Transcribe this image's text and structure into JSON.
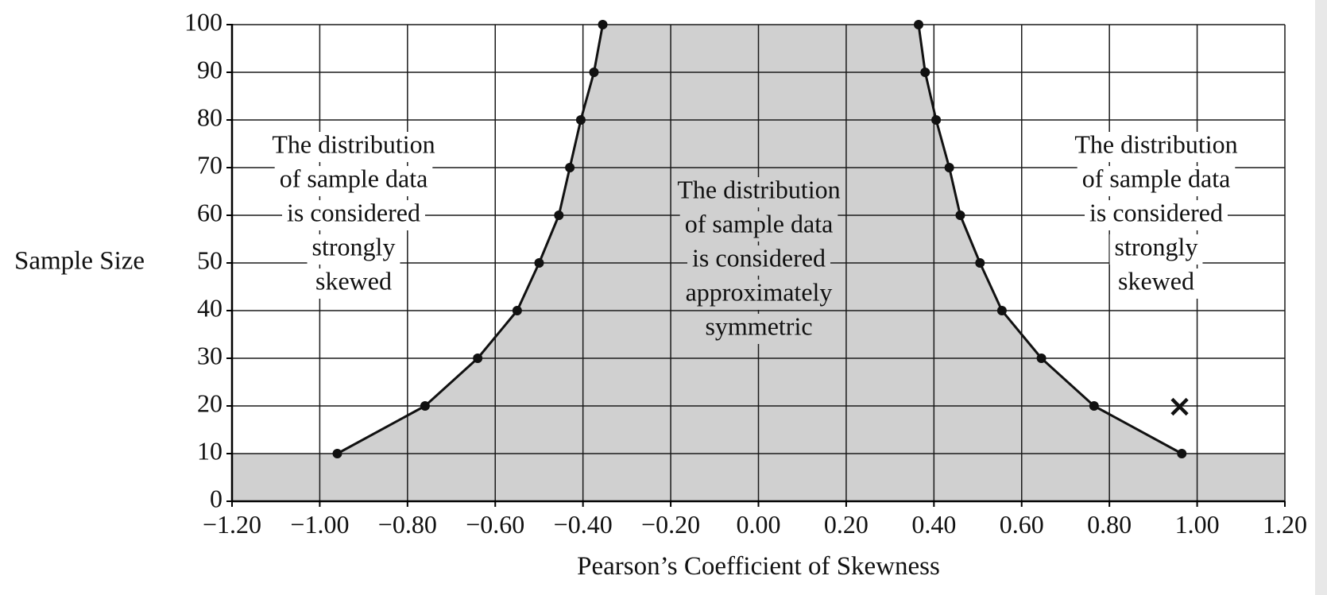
{
  "chart_data": {
    "type": "line",
    "title": "",
    "xlabel": "Pearson’s Coefficient of Skewness",
    "ylabel": "Sample Size",
    "xlim": [
      -1.2,
      1.2
    ],
    "ylim": [
      0,
      100
    ],
    "x_ticks": [
      -1.2,
      -1.0,
      -0.8,
      -0.6,
      -0.4,
      -0.2,
      0.0,
      0.2,
      0.4,
      0.6,
      0.8,
      1.0,
      1.2
    ],
    "x_tick_labels": [
      "−1.20",
      "−1.00",
      "−0.80",
      "−0.60",
      "−0.40",
      "−0.20",
      "0.00",
      "0.20",
      "0.40",
      "0.60",
      "0.80",
      "1.00",
      "1.20"
    ],
    "y_ticks": [
      0,
      10,
      20,
      30,
      40,
      50,
      60,
      70,
      80,
      90,
      100
    ],
    "y_tick_labels": [
      "0",
      "10",
      "20",
      "30",
      "40",
      "50",
      "60",
      "70",
      "80",
      "90",
      "100"
    ],
    "grid": true,
    "colors": {
      "shade": "#d0d0d0",
      "line": "#111111",
      "grid": "#1a1a1a",
      "background": "#ffffff"
    },
    "series": [
      {
        "x": [
          -0.96,
          -0.76,
          -0.64,
          -0.55,
          -0.5,
          -0.455,
          -0.43,
          -0.405,
          -0.375,
          -0.355
        ],
        "y": [
          10,
          20,
          30,
          40,
          50,
          60,
          70,
          80,
          90,
          100
        ]
      },
      {
        "x": [
          0.365,
          0.38,
          0.405,
          0.435,
          0.46,
          0.505,
          0.555,
          0.645,
          0.765,
          0.965
        ],
        "y": [
          100,
          90,
          80,
          70,
          60,
          50,
          40,
          30,
          20,
          10
        ]
      }
    ],
    "shaded_region": {
      "bottom_band_y": [
        0,
        10
      ]
    },
    "marker": {
      "symbol": "×",
      "x": 0.96,
      "y": 20
    },
    "annotations": [
      {
        "region": "left",
        "lines": [
          "The distribution",
          "of sample data",
          "is considered",
          "strongly",
          "skewed"
        ]
      },
      {
        "region": "center",
        "lines": [
          "The distribution",
          "of sample data",
          "is considered",
          "approximately",
          "symmetric"
        ]
      },
      {
        "region": "right",
        "lines": [
          "The distribution",
          "of sample data",
          "is considered",
          "strongly",
          "skewed"
        ]
      }
    ]
  }
}
